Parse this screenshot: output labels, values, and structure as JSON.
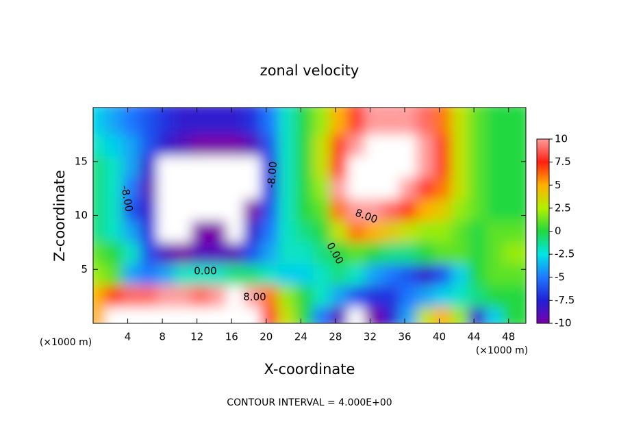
{
  "chart_data": {
    "type": "contour",
    "title": "zonal velocity",
    "xlabel": "X-coordinate",
    "ylabel": "Z-coordinate",
    "x_unit_label": "(×1000 m)",
    "footer": "CONTOUR INTERVAL = 4.000E+00",
    "xlim": [
      0,
      50
    ],
    "xticks": [
      4,
      8,
      12,
      16,
      20,
      24,
      28,
      32,
      36,
      40,
      44,
      48
    ],
    "ylim": [
      0,
      20
    ],
    "yticks": [
      5,
      10,
      15
    ],
    "clim": [
      -10,
      10
    ],
    "cticks": [
      10,
      7.5,
      5,
      2.5,
      0,
      -2.5,
      -5,
      -7.5,
      -10
    ],
    "colormap": [
      "#7a00a8",
      "#2020d8",
      "#1e78ff",
      "#00e6e6",
      "#22d840",
      "#b4f000",
      "#ffb000",
      "#ff2010",
      "#ff9c9c"
    ],
    "out_of_range_color": "#ffffff",
    "x": [
      1,
      3,
      5,
      7,
      9,
      11,
      13,
      15,
      17,
      19,
      21,
      23,
      25,
      27,
      29,
      31,
      33,
      35,
      37,
      39,
      41,
      43,
      45,
      47,
      49
    ],
    "z": [
      1,
      3,
      5,
      7,
      9,
      11,
      13,
      15,
      17,
      19
    ],
    "values": [
      [
        5,
        12,
        14,
        14,
        14,
        14,
        14,
        14,
        14,
        12,
        8,
        3,
        0,
        -5,
        -9,
        -11,
        -10,
        -8,
        -4,
        3,
        5,
        2,
        -8,
        -3,
        0
      ],
      [
        5,
        7,
        9,
        9,
        10,
        10,
        9,
        10,
        11,
        10,
        6,
        2,
        0,
        -2,
        -4,
        -6,
        -7,
        -7,
        -5,
        -4,
        -3,
        -2,
        -1,
        0,
        0
      ],
      [
        2,
        1,
        -4,
        -5,
        -4,
        -2,
        -2,
        -2,
        -1,
        -1,
        -2,
        -3,
        -3,
        -2,
        -1,
        -2,
        -4,
        -5,
        -6,
        -8,
        -6,
        -3,
        0,
        1,
        1
      ],
      [
        1,
        0,
        -2,
        -6,
        -9,
        -10,
        -9,
        -9,
        -9,
        -6,
        -4,
        -2,
        -2,
        -1,
        0,
        1,
        0,
        -1,
        -1,
        0,
        1,
        1,
        0,
        1,
        2
      ],
      [
        -1,
        -2,
        -4,
        -7,
        -11,
        -12,
        -10,
        -10,
        -11,
        -8,
        -5,
        -2,
        -1,
        0,
        3,
        6,
        5,
        4,
        3,
        2,
        2,
        1,
        0,
        1,
        1
      ],
      [
        -1,
        -2,
        -6,
        -8,
        -13,
        -14,
        -14,
        -12,
        -12,
        -10,
        -6,
        -2,
        0,
        1,
        6,
        10,
        10,
        9,
        7,
        5,
        4,
        2,
        1,
        0,
        0
      ],
      [
        -1,
        -2,
        -5,
        -9,
        -14,
        -14,
        -14,
        -14,
        -13,
        -11,
        -7,
        -2,
        0,
        2,
        10,
        13,
        12,
        12,
        10,
        8,
        6,
        3,
        1,
        0,
        0
      ],
      [
        -1,
        -2,
        -4,
        -8,
        -12,
        -14,
        -14,
        -14,
        -14,
        -12,
        -7,
        -2,
        0,
        3,
        8,
        12,
        14,
        12,
        12,
        10,
        7,
        3,
        1,
        0,
        0
      ],
      [
        -2,
        -3,
        -4,
        -6,
        -8,
        -9,
        -10,
        -10,
        -10,
        -9,
        -6,
        -2,
        0,
        3,
        7,
        10,
        12,
        12,
        11,
        10,
        7,
        3,
        1,
        0,
        0
      ],
      [
        -3,
        -4,
        -5,
        -6,
        -7,
        -8,
        -8,
        -8,
        -8,
        -7,
        -5,
        -2,
        0,
        2,
        5,
        8,
        10,
        10,
        10,
        9,
        6,
        3,
        1,
        0,
        0
      ]
    ],
    "contour_labels": [
      "0.00",
      "8.00",
      "8.00",
      "-8.00",
      "-8.00",
      "0.00"
    ]
  }
}
